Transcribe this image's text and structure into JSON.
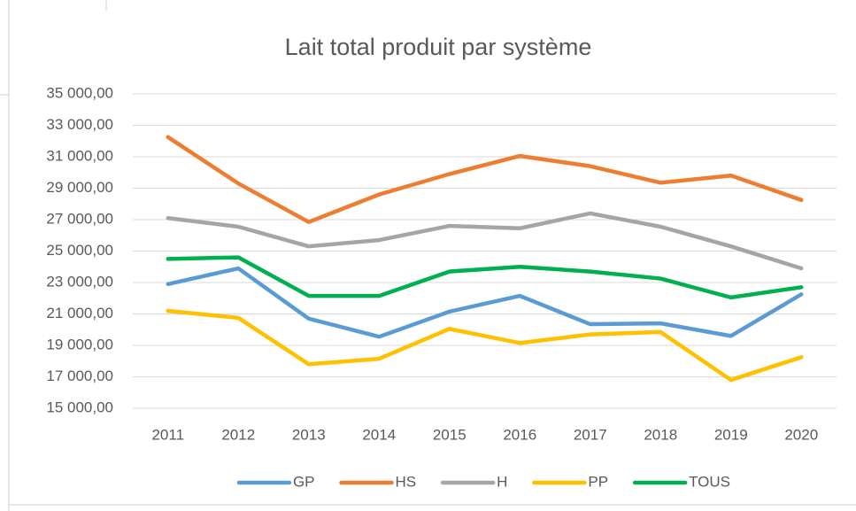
{
  "chart_data": {
    "type": "line",
    "title": "Lait total produit par système",
    "categories": [
      "2011",
      "2012",
      "2013",
      "2014",
      "2015",
      "2016",
      "2017",
      "2018",
      "2019",
      "2020"
    ],
    "series": [
      {
        "name": "GP",
        "color": "#5b9bd5",
        "values": [
          22900,
          23900,
          20700,
          19550,
          21150,
          22150,
          20350,
          20400,
          19600,
          22250
        ]
      },
      {
        "name": "HS",
        "color": "#ed7d31",
        "values": [
          32250,
          29300,
          26850,
          28600,
          29900,
          31050,
          30400,
          29350,
          29800,
          28250
        ]
      },
      {
        "name": "H",
        "color": "#a5a5a5",
        "values": [
          27100,
          26550,
          25300,
          25700,
          26600,
          26450,
          27400,
          26550,
          25300,
          23900
        ]
      },
      {
        "name": "PP",
        "color": "#ffc000",
        "values": [
          21200,
          20750,
          17800,
          18150,
          20050,
          19150,
          19700,
          19850,
          16800,
          18250
        ]
      },
      {
        "name": "TOUS",
        "color": "#00b050",
        "values": [
          24500,
          24600,
          22150,
          22150,
          23700,
          24000,
          23700,
          23250,
          22050,
          22700
        ]
      }
    ],
    "ylim": [
      15000,
      35000
    ],
    "yticks": [
      {
        "value": 15000,
        "label": "15 000,00"
      },
      {
        "value": 17000,
        "label": "17 000,00"
      },
      {
        "value": 19000,
        "label": "19 000,00"
      },
      {
        "value": 21000,
        "label": "21 000,00"
      },
      {
        "value": 23000,
        "label": "23 000,00"
      },
      {
        "value": 25000,
        "label": "25 000,00"
      },
      {
        "value": 27000,
        "label": "27 000,00"
      },
      {
        "value": 29000,
        "label": "29 000,00"
      },
      {
        "value": 31000,
        "label": "31 000,00"
      },
      {
        "value": 33000,
        "label": "33 000,00"
      },
      {
        "value": 35000,
        "label": "35 000,00"
      }
    ],
    "grid": true,
    "legend": "bottom"
  }
}
